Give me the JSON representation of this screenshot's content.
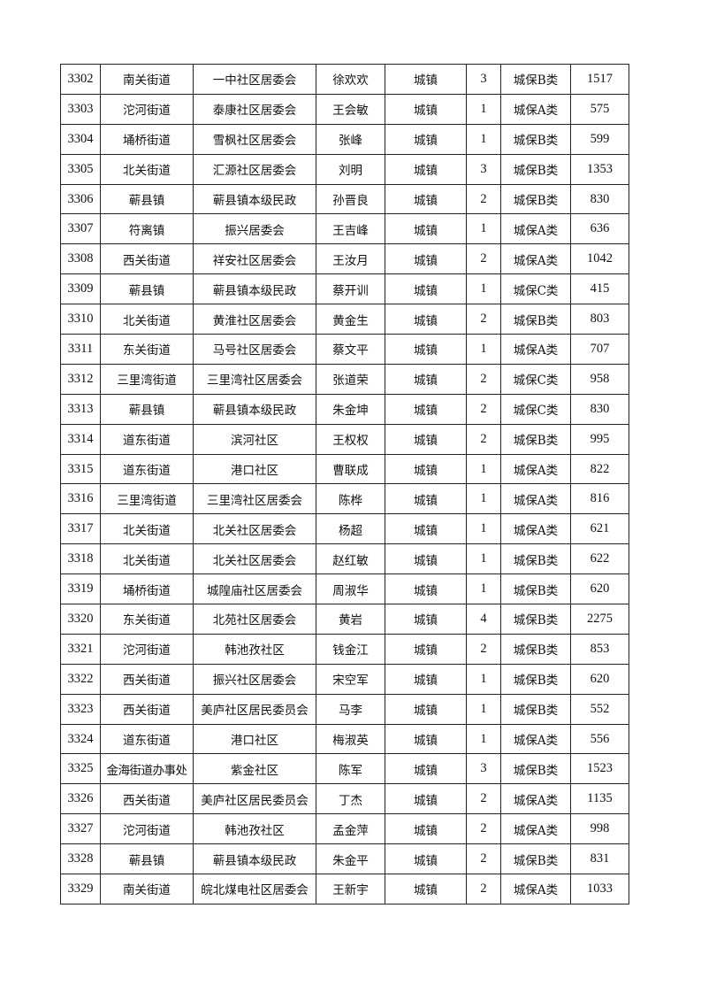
{
  "rows": [
    [
      "3302",
      "南关街道",
      "一中社区居委会",
      "徐欢欢",
      "城镇",
      "3",
      "城保B类",
      "1517"
    ],
    [
      "3303",
      "沱河街道",
      "泰康社区居委会",
      "王会敏",
      "城镇",
      "1",
      "城保A类",
      "575"
    ],
    [
      "3304",
      "埇桥街道",
      "雪枫社区居委会",
      "张峰",
      "城镇",
      "1",
      "城保B类",
      "599"
    ],
    [
      "3305",
      "北关街道",
      "汇源社区居委会",
      "刘明",
      "城镇",
      "3",
      "城保B类",
      "1353"
    ],
    [
      "3306",
      "蕲县镇",
      "蕲县镇本级民政",
      "孙晋良",
      "城镇",
      "2",
      "城保B类",
      "830"
    ],
    [
      "3307",
      "符离镇",
      "振兴居委会",
      "王吉峰",
      "城镇",
      "1",
      "城保A类",
      "636"
    ],
    [
      "3308",
      "西关街道",
      "祥安社区居委会",
      "王汝月",
      "城镇",
      "2",
      "城保A类",
      "1042"
    ],
    [
      "3309",
      "蕲县镇",
      "蕲县镇本级民政",
      "蔡开训",
      "城镇",
      "1",
      "城保C类",
      "415"
    ],
    [
      "3310",
      "北关街道",
      "黄淮社区居委会",
      "黄金生",
      "城镇",
      "2",
      "城保B类",
      "803"
    ],
    [
      "3311",
      "东关街道",
      "马号社区居委会",
      "蔡文平",
      "城镇",
      "1",
      "城保A类",
      "707"
    ],
    [
      "3312",
      "三里湾街道",
      "三里湾社区居委会",
      "张道荣",
      "城镇",
      "2",
      "城保C类",
      "958"
    ],
    [
      "3313",
      "蕲县镇",
      "蕲县镇本级民政",
      "朱金坤",
      "城镇",
      "2",
      "城保C类",
      "830"
    ],
    [
      "3314",
      "道东街道",
      "滨河社区",
      "王权权",
      "城镇",
      "2",
      "城保B类",
      "995"
    ],
    [
      "3315",
      "道东街道",
      "港口社区",
      "曹联成",
      "城镇",
      "1",
      "城保A类",
      "822"
    ],
    [
      "3316",
      "三里湾街道",
      "三里湾社区居委会",
      "陈桦",
      "城镇",
      "1",
      "城保A类",
      "816"
    ],
    [
      "3317",
      "北关街道",
      "北关社区居委会",
      "杨超",
      "城镇",
      "1",
      "城保A类",
      "621"
    ],
    [
      "3318",
      "北关街道",
      "北关社区居委会",
      "赵红敏",
      "城镇",
      "1",
      "城保B类",
      "622"
    ],
    [
      "3319",
      "埇桥街道",
      "城隍庙社区居委会",
      "周淑华",
      "城镇",
      "1",
      "城保B类",
      "620"
    ],
    [
      "3320",
      "东关街道",
      "北苑社区居委会",
      "黄岩",
      "城镇",
      "4",
      "城保B类",
      "2275"
    ],
    [
      "3321",
      "沱河街道",
      "韩池孜社区",
      "钱金江",
      "城镇",
      "2",
      "城保B类",
      "853"
    ],
    [
      "3322",
      "西关街道",
      "振兴社区居委会",
      "宋空军",
      "城镇",
      "1",
      "城保B类",
      "620"
    ],
    [
      "3323",
      "西关街道",
      "美庐社区居民委员会",
      "马李",
      "城镇",
      "1",
      "城保B类",
      "552"
    ],
    [
      "3324",
      "道东街道",
      "港口社区",
      "梅淑英",
      "城镇",
      "1",
      "城保A类",
      "556"
    ],
    [
      "3325",
      "金海街道办事处",
      "紫金社区",
      "陈军",
      "城镇",
      "3",
      "城保B类",
      "1523"
    ],
    [
      "3326",
      "西关街道",
      "美庐社区居民委员会",
      "丁杰",
      "城镇",
      "2",
      "城保A类",
      "1135"
    ],
    [
      "3327",
      "沱河街道",
      "韩池孜社区",
      "孟金萍",
      "城镇",
      "2",
      "城保A类",
      "998"
    ],
    [
      "3328",
      "蕲县镇",
      "蕲县镇本级民政",
      "朱金平",
      "城镇",
      "2",
      "城保B类",
      "831"
    ],
    [
      "3329",
      "南关街道",
      "皖北煤电社区居委会",
      "王新宇",
      "城镇",
      "2",
      "城保A类",
      "1033"
    ]
  ]
}
